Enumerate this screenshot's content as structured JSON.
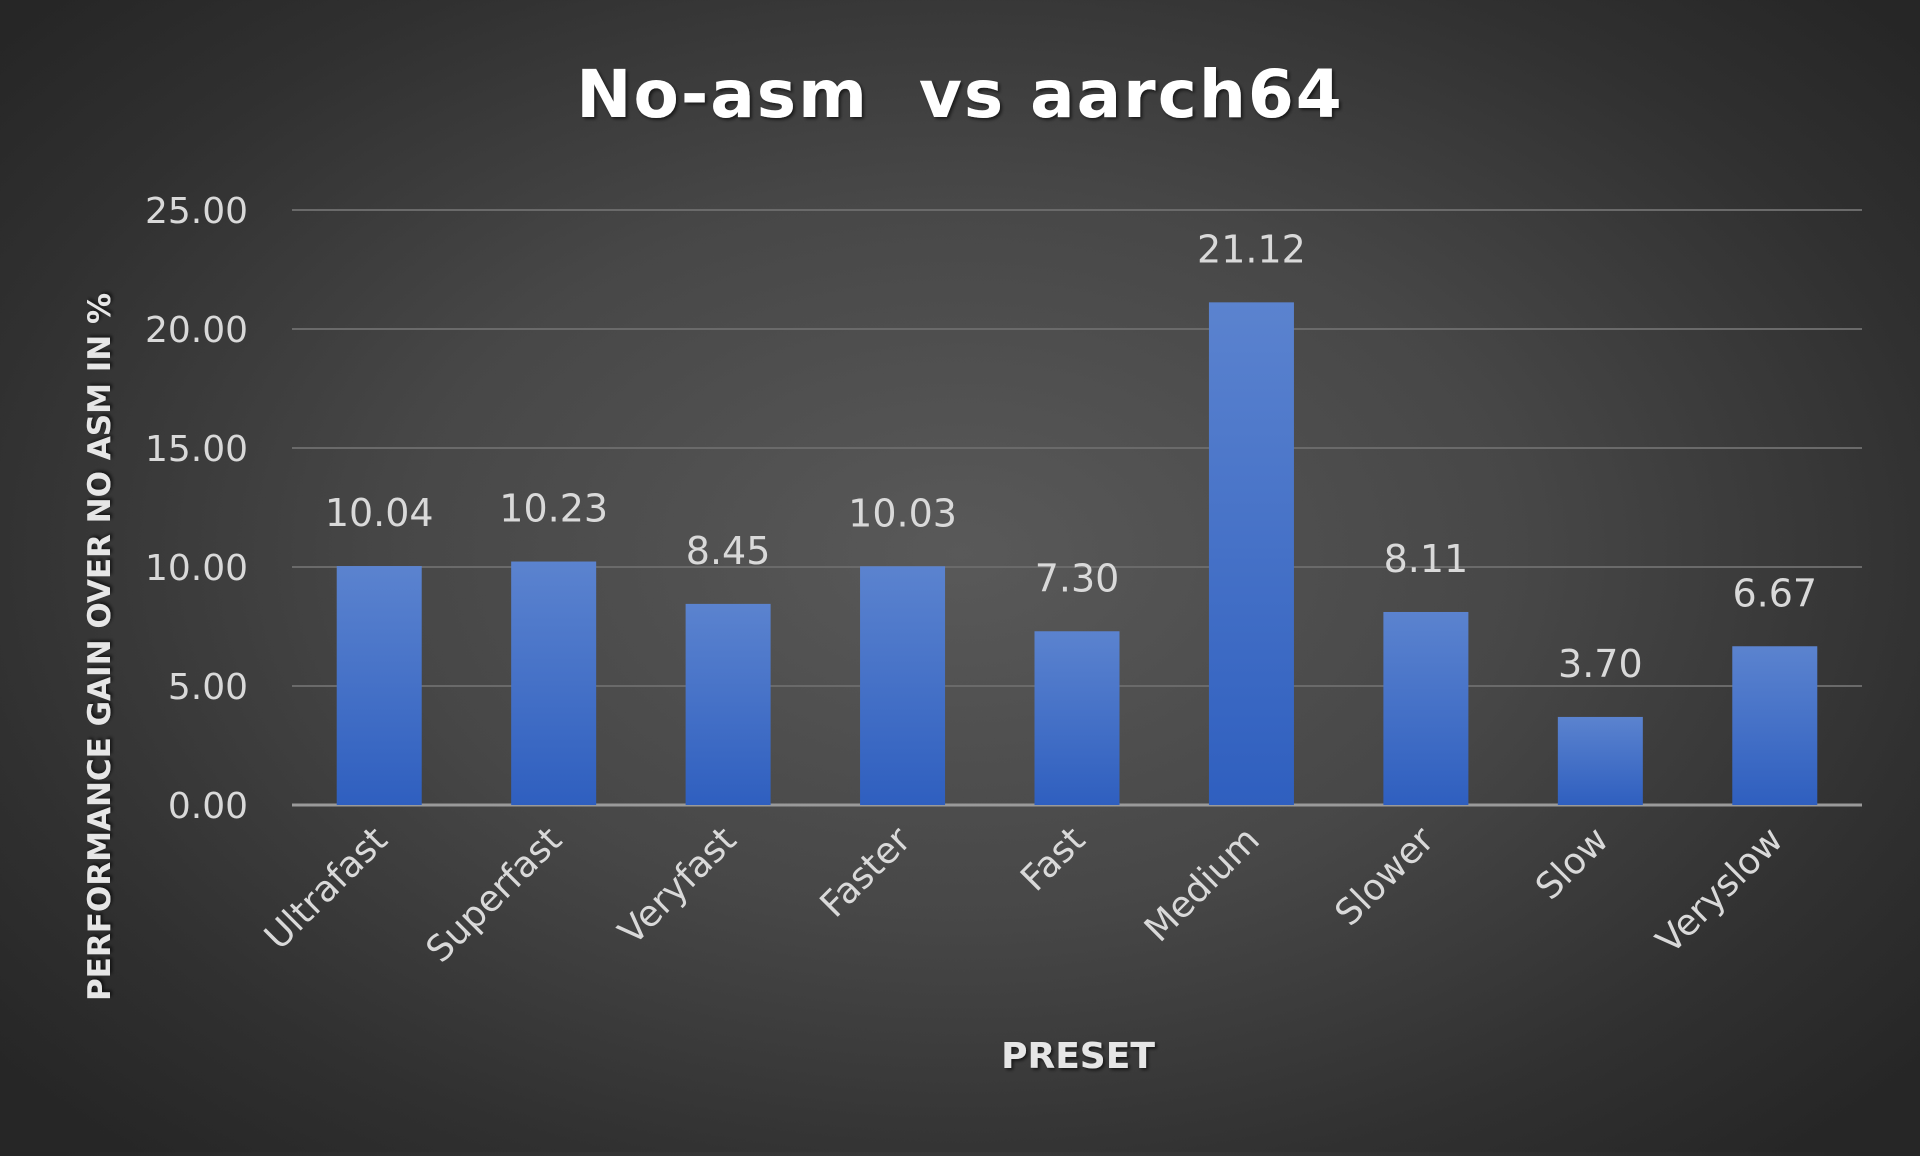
{
  "chart_data": {
    "type": "bar",
    "title": "No-asm  vs aarch64",
    "xlabel": "PRESET",
    "ylabel": "PERFORMANCE GAIN OVER NO ASM IN %",
    "categories": [
      "Ultrafast",
      "Superfast",
      "Veryfast",
      "Faster",
      "Fast",
      "Medium",
      "Slower",
      "Slow",
      "Veryslow"
    ],
    "values": [
      10.04,
      10.23,
      8.45,
      10.03,
      7.3,
      21.12,
      8.11,
      3.7,
      6.67
    ],
    "value_labels": [
      "10.04",
      "10.23",
      "8.45",
      "10.03",
      "7.30",
      "21.12",
      "8.11",
      "3.70",
      "6.67"
    ],
    "yticks": [
      "0.00",
      "5.00",
      "10.00",
      "15.00",
      "20.00",
      "25.00"
    ],
    "ylim": [
      0,
      25
    ],
    "grid": true,
    "legend": "none",
    "colors": {
      "bar_top": "#5b83cf",
      "bar_bottom": "#2f5fbf",
      "gridline": "#6a6a6a",
      "axis_line": "#9a9a9a",
      "tick_text": "#d9d9d9",
      "title_text": "#ffffff"
    }
  }
}
